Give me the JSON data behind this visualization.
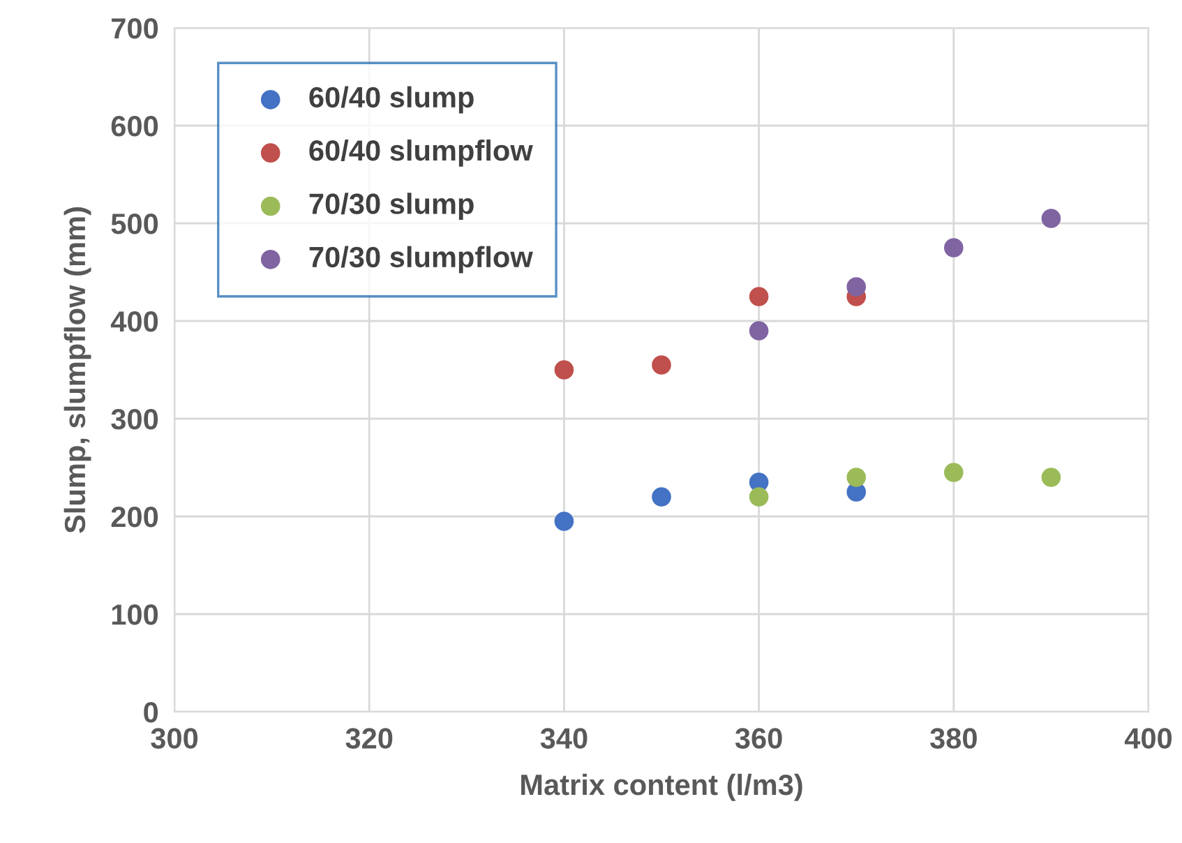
{
  "chart_data": {
    "type": "scatter",
    "xlabel": "Matrix content (l/m3)",
    "ylabel": "Slump, slumpflow (mm)",
    "xlim": [
      300,
      400
    ],
    "xticks": [
      300,
      320,
      340,
      360,
      380,
      400
    ],
    "ylim": [
      0,
      700
    ],
    "yticks": [
      0,
      100,
      200,
      300,
      400,
      500,
      600,
      700
    ],
    "grid": true,
    "legend": "top left",
    "marker": "circle",
    "series": [
      {
        "name": "60/40 slump",
        "color": "#4472c4",
        "x": [
          340,
          350,
          360,
          370
        ],
        "values": [
          195,
          220,
          235,
          225
        ]
      },
      {
        "name": "60/40 slumpflow",
        "color": "#c0504d",
        "x": [
          340,
          350,
          360,
          370
        ],
        "values": [
          350,
          355,
          425,
          425
        ]
      },
      {
        "name": "70/30 slump",
        "color": "#9bbb59",
        "x": [
          360,
          370,
          380,
          390
        ],
        "values": [
          220,
          240,
          245,
          240
        ]
      },
      {
        "name": "70/30 slumpflow",
        "color": "#8064a2",
        "x": [
          360,
          370,
          380,
          390
        ],
        "values": [
          390,
          435,
          475,
          505
        ]
      }
    ]
  }
}
